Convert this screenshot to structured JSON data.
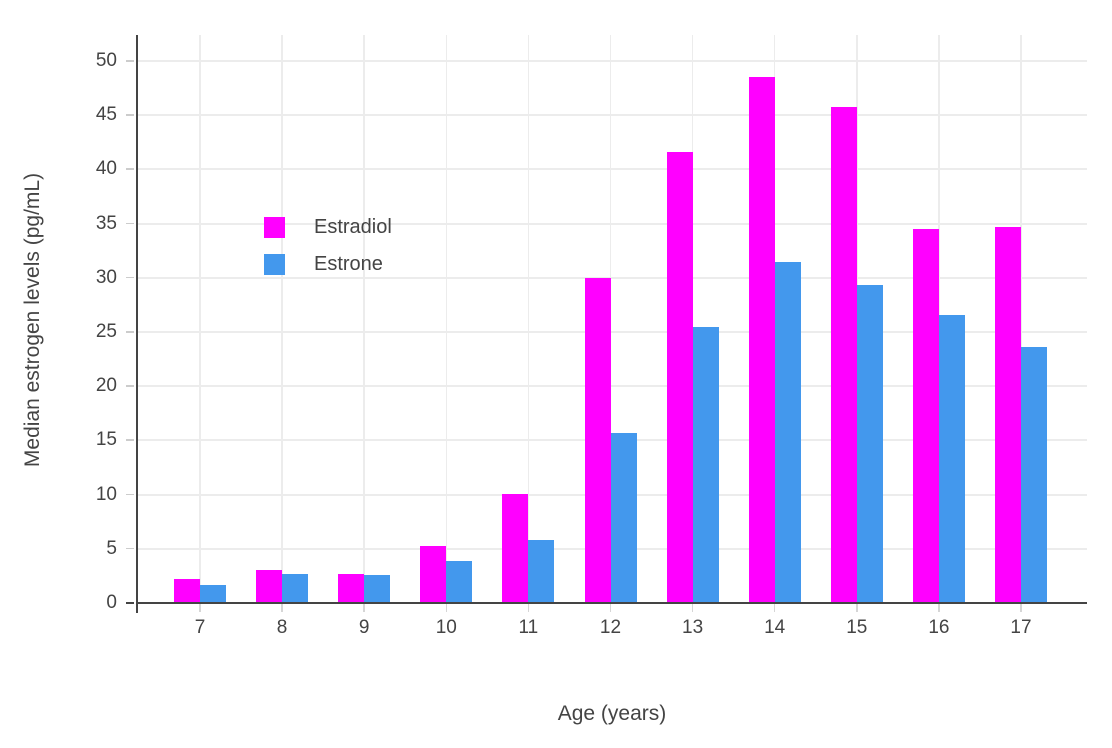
{
  "chart_data": {
    "type": "bar",
    "title": "",
    "xlabel": "Age (years)",
    "ylabel": "Median estrogen levels (pg/mL)",
    "categories": [
      7,
      8,
      9,
      10,
      11,
      12,
      13,
      14,
      15,
      16,
      17
    ],
    "series": [
      {
        "name": "Estradiol",
        "color": "#FF00FF",
        "values": [
          2.2,
          3.0,
          2.7,
          5.3,
          10.1,
          30.0,
          41.6,
          48.5,
          45.8,
          34.5,
          34.7
        ]
      },
      {
        "name": "Estrone",
        "color": "#4398ED",
        "values": [
          1.7,
          2.7,
          2.6,
          3.9,
          5.8,
          15.7,
          25.5,
          31.5,
          29.3,
          26.6,
          23.6
        ]
      }
    ],
    "ylim": [
      0,
      52.4
    ],
    "yticks": [
      0,
      5,
      10,
      15,
      20,
      25,
      30,
      35,
      40,
      45,
      50
    ],
    "grid": true,
    "grid_color": "#ececec",
    "axis_color": "#444444",
    "tick_color": "#cccccc",
    "text_color": "#444444",
    "background": "#ffffff",
    "legend_position": "inside-top-left"
  }
}
